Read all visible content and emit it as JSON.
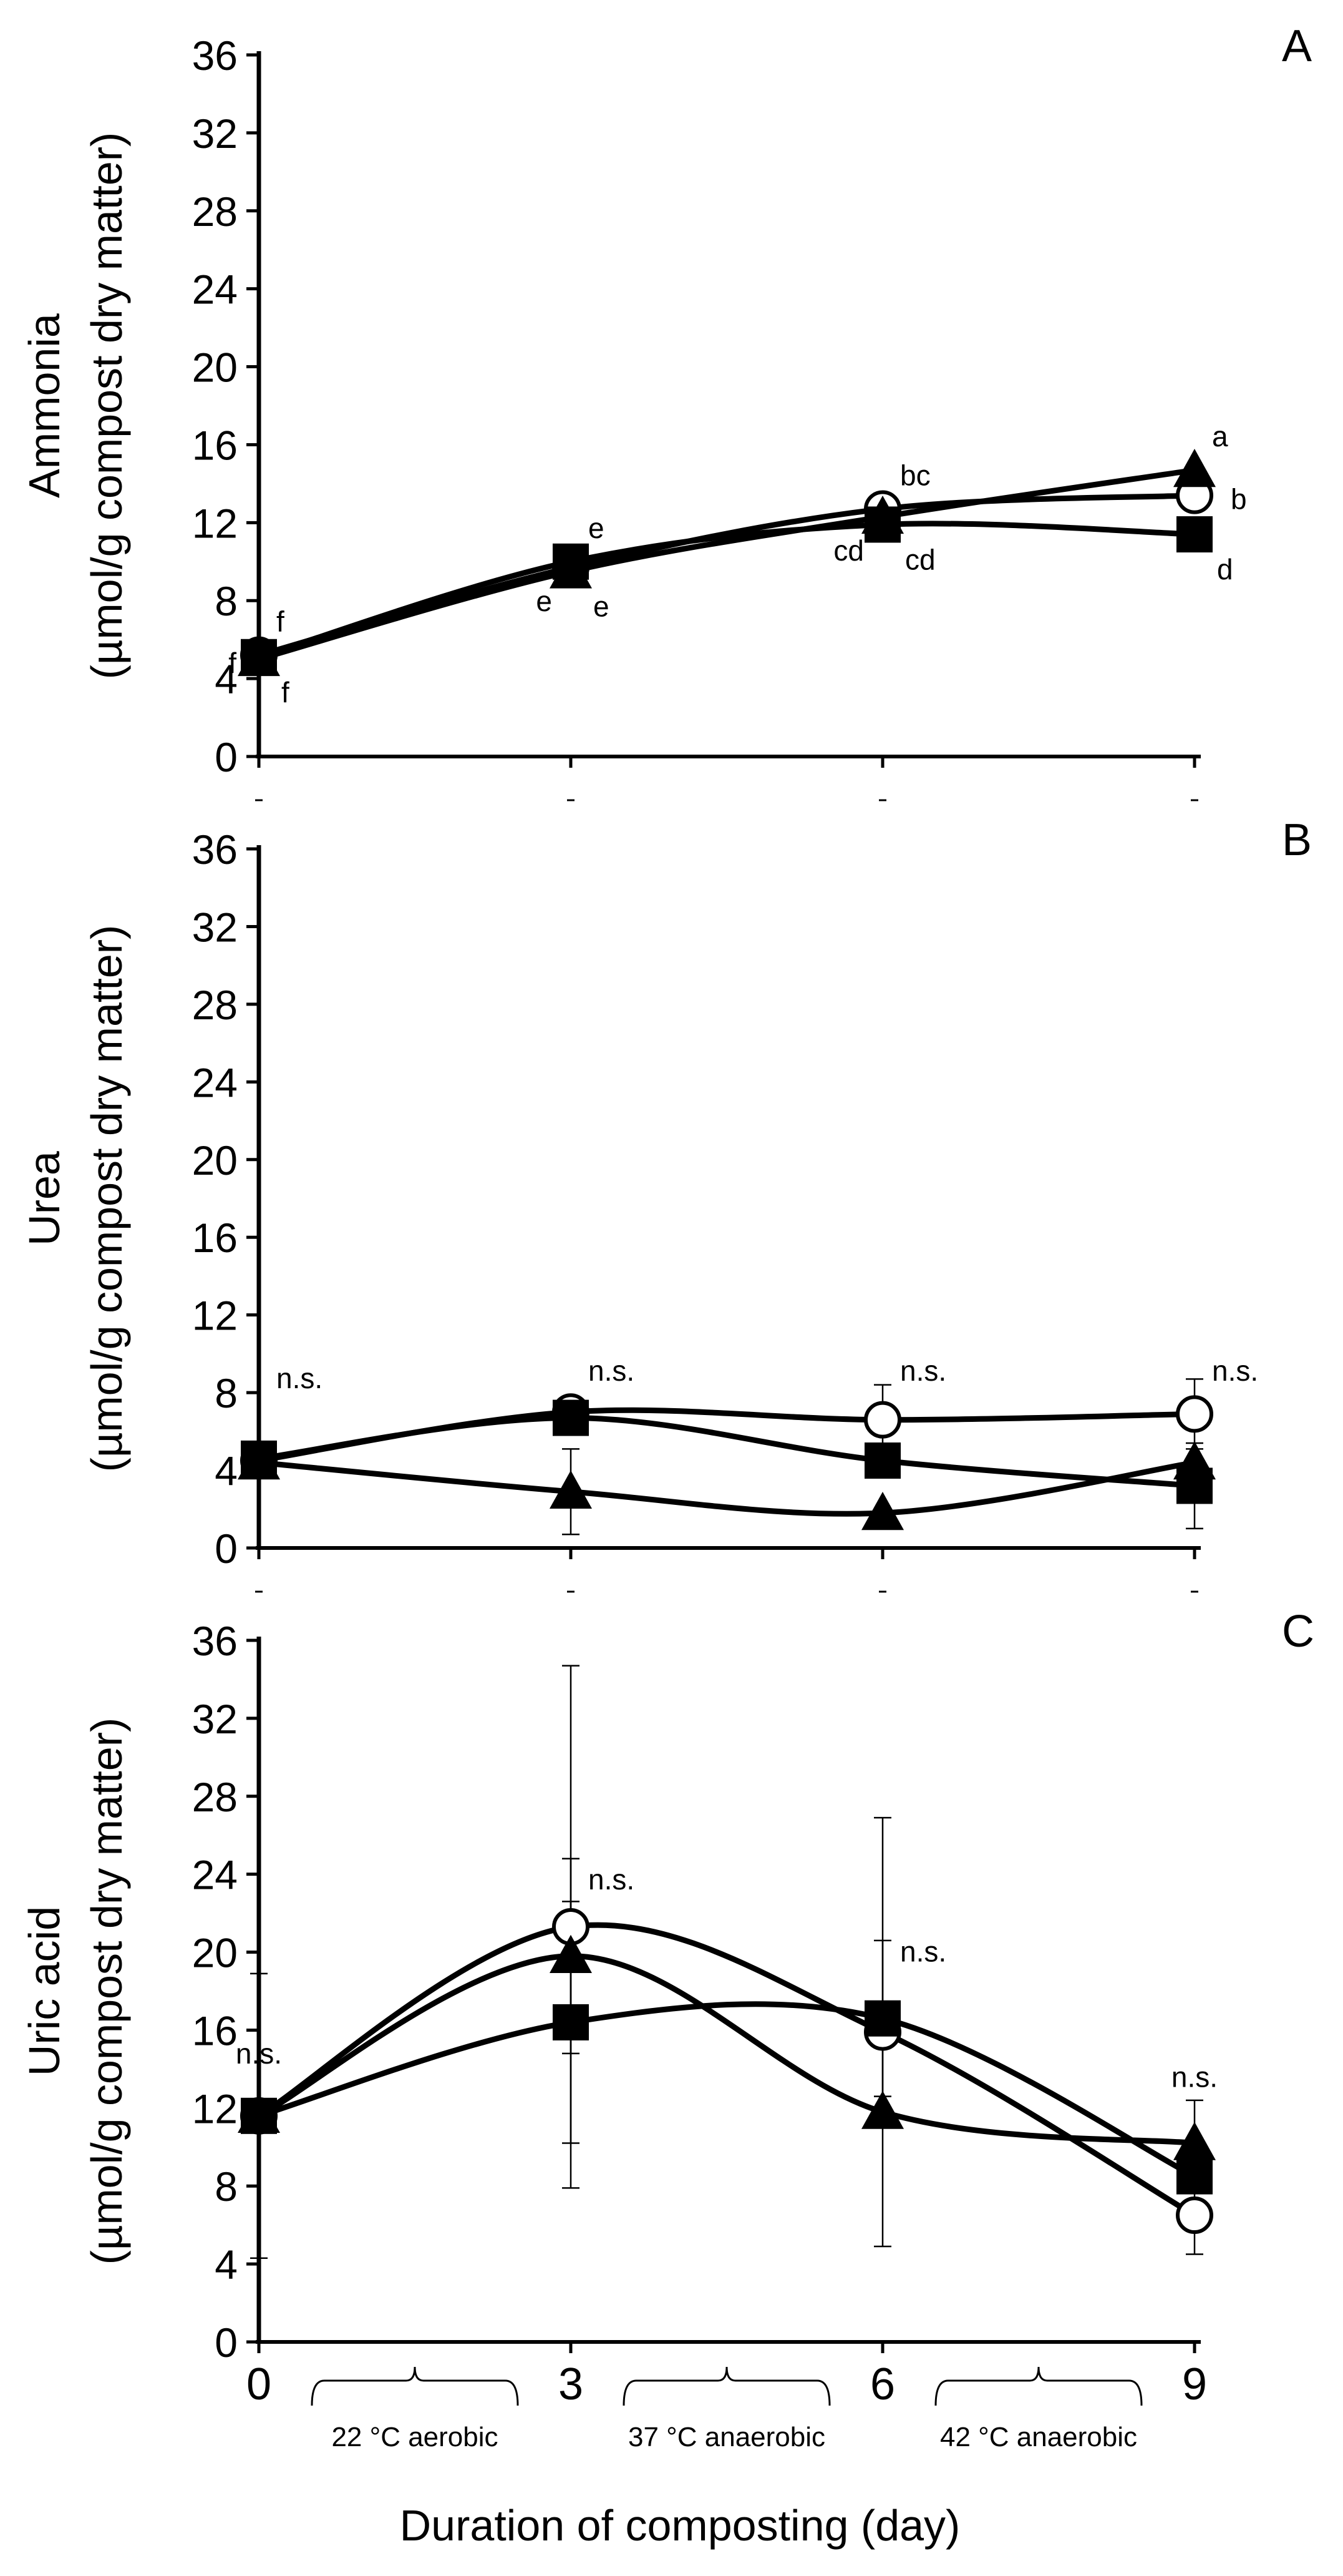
{
  "chart_data": [
    {
      "type": "line",
      "panel_label": "A",
      "ylabel_line1": "Ammonia",
      "ylabel_line2": "(µmol/g compost dry matter)",
      "ylim": [
        0,
        36
      ],
      "yticks": [
        "0",
        "4",
        "8",
        "12",
        "16",
        "20",
        "24",
        "28",
        "32",
        "36"
      ],
      "x": [
        0,
        3,
        6,
        9
      ],
      "series": [
        {
          "name": "open-circle",
          "marker": "circle-open",
          "values": [
            5.2,
            9.7,
            12.7,
            13.4
          ]
        },
        {
          "name": "filled-triangle",
          "marker": "triangle-filled",
          "values": [
            5.0,
            9.5,
            12.3,
            14.7
          ]
        },
        {
          "name": "filled-square",
          "marker": "square-filled",
          "values": [
            5.1,
            10.0,
            11.9,
            11.4
          ]
        }
      ],
      "annotations": [
        {
          "x": 0,
          "y": 5.2,
          "text": "f",
          "pos": "right-above"
        },
        {
          "x": 0,
          "y": 5.0,
          "text": "f",
          "pos": "left"
        },
        {
          "x": 0,
          "y": 5.1,
          "text": "f",
          "pos": "right-below"
        },
        {
          "x": 3,
          "y": 10.0,
          "text": "e",
          "pos": "right-above"
        },
        {
          "x": 3,
          "y": 9.7,
          "text": "e",
          "pos": "left-below"
        },
        {
          "x": 3,
          "y": 9.5,
          "text": "e",
          "pos": "right-below"
        },
        {
          "x": 6,
          "y": 12.7,
          "text": "bc",
          "pos": "right-above"
        },
        {
          "x": 6,
          "y": 12.3,
          "text": "cd",
          "pos": "left-below"
        },
        {
          "x": 6,
          "y": 11.9,
          "text": "cd",
          "pos": "right-below"
        },
        {
          "x": 9,
          "y": 14.7,
          "text": "a",
          "pos": "right-above"
        },
        {
          "x": 9,
          "y": 13.4,
          "text": "b",
          "pos": "right"
        },
        {
          "x": 9,
          "y": 11.4,
          "text": "d",
          "pos": "right-below"
        }
      ]
    },
    {
      "type": "line",
      "panel_label": "B",
      "ylabel_line1": "Urea",
      "ylabel_line2": "(µmol/g compost dry matter)",
      "ylim": [
        0,
        36
      ],
      "yticks": [
        "0",
        "4",
        "8",
        "12",
        "16",
        "20",
        "24",
        "28",
        "32",
        "36"
      ],
      "x": [
        0,
        3,
        6,
        9
      ],
      "series": [
        {
          "name": "open-circle",
          "marker": "circle-open",
          "values": [
            4.5,
            7.0,
            6.6,
            6.9
          ],
          "err": [
            0,
            0.5,
            1.8,
            1.8
          ]
        },
        {
          "name": "filled-triangle",
          "marker": "triangle-filled",
          "values": [
            4.4,
            2.9,
            1.8,
            4.4
          ],
          "err": [
            0,
            2.2,
            0,
            0
          ]
        },
        {
          "name": "filled-square",
          "marker": "square-filled",
          "values": [
            4.6,
            6.7,
            4.5,
            3.2
          ],
          "err": [
            0,
            0,
            0,
            2.2
          ]
        }
      ],
      "annotations": [
        {
          "x": 0,
          "y": 7.0,
          "text": "n.s.",
          "pos": "right-above"
        },
        {
          "x": 3,
          "y": 7.4,
          "text": "n.s.",
          "pos": "right-above"
        },
        {
          "x": 6,
          "y": 7.4,
          "text": "n.s.",
          "pos": "right-above"
        },
        {
          "x": 9,
          "y": 7.4,
          "text": "n.s.",
          "pos": "right-above"
        }
      ]
    },
    {
      "type": "line",
      "panel_label": "C",
      "ylabel_line1": "Uric acid",
      "ylabel_line2": "(µmol/g compost dry matter)",
      "ylim": [
        0,
        36
      ],
      "yticks": [
        "0",
        "4",
        "8",
        "12",
        "16",
        "20",
        "24",
        "28",
        "32",
        "36"
      ],
      "x": [
        0,
        3,
        6,
        9
      ],
      "xticks": [
        "0",
        "3",
        "6",
        "9"
      ],
      "xlabel": "Duration of composting (day)",
      "series": [
        {
          "name": "open-circle",
          "marker": "circle-open",
          "values": [
            11.6,
            21.3,
            15.9,
            6.5
          ],
          "err": [
            0,
            13.4,
            11.0,
            2.0
          ]
        },
        {
          "name": "filled-triangle",
          "marker": "triangle-filled",
          "values": [
            11.6,
            19.8,
            11.8,
            10.2
          ],
          "err": [
            7.3,
            5.0,
            0,
            2.2
          ]
        },
        {
          "name": "filled-square",
          "marker": "square-filled",
          "values": [
            11.6,
            16.4,
            16.6,
            8.5
          ],
          "err": [
            0,
            6.2,
            4.0,
            0
          ]
        }
      ],
      "annotations": [
        {
          "x": 0,
          "y": 13.0,
          "text": "n.s.",
          "pos": "above"
        },
        {
          "x": 3,
          "y": 22.0,
          "text": "n.s.",
          "pos": "right-above"
        },
        {
          "x": 6,
          "y": 18.3,
          "text": "n.s.",
          "pos": "right-above"
        },
        {
          "x": 9,
          "y": 11.8,
          "text": "n.s.",
          "pos": "above"
        }
      ],
      "periods": [
        {
          "from": 0,
          "to": 3,
          "label": "22 °C aerobic"
        },
        {
          "from": 3,
          "to": 6,
          "label": "37 °C anaerobic"
        },
        {
          "from": 6,
          "to": 9,
          "label": "42 °C anaerobic"
        }
      ]
    }
  ]
}
